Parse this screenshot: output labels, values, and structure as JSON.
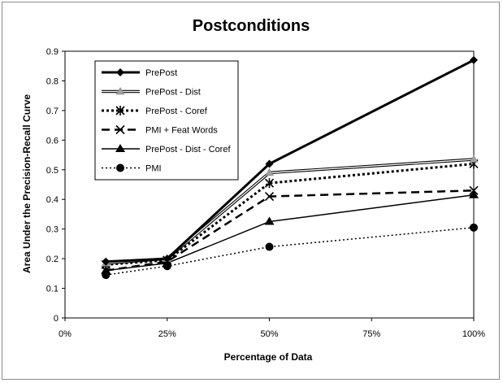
{
  "chart_data": {
    "type": "line",
    "title": "Postconditions",
    "xlabel": "Percentage of Data",
    "ylabel": "Area Under the Precision-Recall  Curve",
    "x": [
      0.1,
      0.25,
      0.5,
      1.0
    ],
    "xlim": [
      0,
      1.0
    ],
    "ylim": [
      0,
      0.9
    ],
    "x_ticks": [
      0,
      0.25,
      0.5,
      0.75,
      1.0
    ],
    "x_tick_labels": [
      "0%",
      "25%",
      "50%",
      "75%",
      "100%"
    ],
    "y_ticks": [
      0,
      0.1,
      0.2,
      0.3,
      0.4,
      0.5,
      0.6,
      0.7,
      0.8,
      0.9
    ],
    "y_tick_labels": [
      "0",
      "0.1",
      "0.2",
      "0.3",
      "0.4",
      "0.5",
      "0.6",
      "0.7",
      "0.8",
      "0.9"
    ],
    "grid": false,
    "legend_position": "top-left",
    "series": [
      {
        "name": "PrePost",
        "values": [
          0.19,
          0.2,
          0.52,
          0.87
        ],
        "style": "thick-solid",
        "marker": "diamond",
        "color": "#000000"
      },
      {
        "name": "PrePost - Dist",
        "values": [
          0.185,
          0.2,
          0.49,
          0.535
        ],
        "style": "double",
        "marker": "triangle-gray",
        "color": "#000000"
      },
      {
        "name": "PrePost - Coref",
        "values": [
          0.18,
          0.195,
          0.455,
          0.52
        ],
        "style": "thick-dotted",
        "marker": "asterisk",
        "color": "#000000"
      },
      {
        "name": "PMI + Feat Words",
        "values": [
          0.16,
          0.19,
          0.41,
          0.43
        ],
        "style": "dashed",
        "marker": "x",
        "color": "#000000"
      },
      {
        "name": "PrePost - Dist - Coref",
        "values": [
          0.16,
          0.185,
          0.325,
          0.415
        ],
        "style": "solid",
        "marker": "triangle",
        "color": "#000000"
      },
      {
        "name": "PMI",
        "values": [
          0.145,
          0.175,
          0.24,
          0.305
        ],
        "style": "dotted",
        "marker": "circle",
        "color": "#000000"
      }
    ]
  }
}
